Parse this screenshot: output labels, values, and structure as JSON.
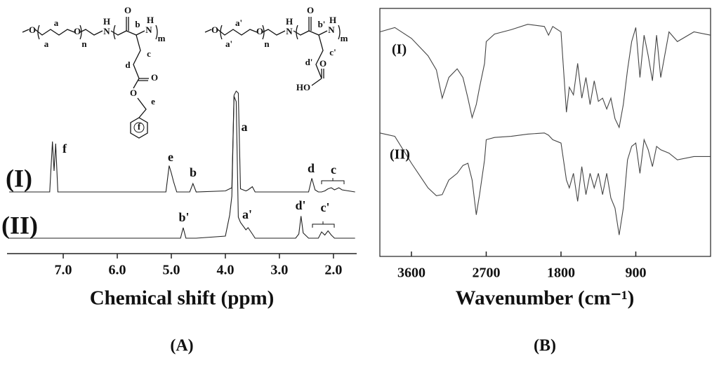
{
  "chart_data": [
    {
      "type": "line",
      "title": "(A)",
      "xlabel": "Chemical shift (ppm)",
      "x": [
        8.0,
        7.25,
        7.2,
        7.17,
        7.14,
        7.1,
        5.1,
        5.04,
        5.0,
        4.96,
        4.9,
        4.83,
        4.78,
        4.73,
        4.66,
        4.6,
        4.54,
        4.0,
        3.92,
        3.88,
        3.84,
        3.8,
        3.76,
        3.72,
        3.62,
        3.58,
        3.5,
        3.45,
        2.7,
        2.64,
        2.6,
        2.56,
        2.46,
        2.4,
        2.34,
        2.28,
        2.22,
        2.16,
        2.1,
        2.04,
        1.98,
        1.9,
        1.84,
        1.6
      ],
      "series": [
        {
          "name": "(I)",
          "color": "#222222",
          "values": [
            0,
            0,
            48,
            20,
            46,
            0,
            0,
            25,
            18,
            10,
            0,
            0,
            0,
            0,
            0,
            8,
            0,
            1,
            3,
            4,
            92,
            96,
            94,
            3,
            1,
            2,
            5,
            0,
            0,
            0,
            0,
            0,
            0,
            13,
            2,
            0,
            0,
            1,
            3,
            4,
            2,
            4,
            2,
            0
          ]
        },
        {
          "name": "(II)",
          "color": "#222222",
          "values": [
            0,
            0,
            0,
            0,
            0,
            0,
            0,
            0,
            0,
            0,
            0,
            0,
            10,
            0,
            0,
            0,
            0,
            2,
            22,
            40,
            135,
            130,
            20,
            15,
            8,
            10,
            4,
            0,
            0,
            4,
            21,
            5,
            0,
            0,
            0,
            0,
            6,
            3,
            7,
            3,
            0,
            0,
            0,
            0
          ]
        }
      ],
      "xlim": [
        8.04,
        1.57
      ],
      "ylim": [
        0,
        140
      ],
      "xticks": [
        {
          "value": 7,
          "label": "7.0"
        },
        {
          "value": 6,
          "label": "6.0"
        },
        {
          "value": 5,
          "label": "5.0"
        },
        {
          "value": 4,
          "label": "4.0"
        },
        {
          "value": 3,
          "label": "3.0"
        },
        {
          "value": 2,
          "label": "2.0"
        }
      ],
      "annotations": [
        "f",
        "e",
        "b",
        "a",
        "d",
        "c",
        "b'",
        "a'",
        "d'",
        "c'"
      ]
    },
    {
      "type": "line",
      "title": "(B)",
      "xlabel": "Wavenumber (cm⁻¹)",
      "x": [
        3980,
        3800,
        3600,
        3400,
        3300,
        3230,
        3150,
        3050,
        2980,
        2920,
        2870,
        2820,
        2780,
        2720,
        2700,
        2600,
        2400,
        2200,
        2000,
        1950,
        1900,
        1800,
        1735,
        1700,
        1650,
        1600,
        1550,
        1500,
        1450,
        1400,
        1350,
        1300,
        1250,
        1200,
        1150,
        1100,
        1050,
        1000,
        950,
        900,
        850,
        800,
        750,
        700,
        650,
        600,
        500,
        400,
        200,
        0
      ],
      "series": [
        {
          "name": "(I)",
          "color": "#444444",
          "values": [
            90,
            94,
            84,
            68,
            55,
            29,
            48,
            56,
            48,
            29,
            11,
            23,
            39,
            61,
            81,
            88,
            92,
            97,
            95,
            87,
            95,
            90,
            16,
            39,
            32,
            61,
            29,
            48,
            23,
            45,
            26,
            29,
            19,
            29,
            10,
            2,
            23,
            55,
            81,
            94,
            48,
            87,
            68,
            45,
            87,
            48,
            90,
            81,
            90,
            87
          ]
        },
        {
          "name": "(II)",
          "color": "#444444",
          "values": [
            97,
            94,
            70,
            48,
            41,
            42,
            55,
            61,
            68,
            70,
            55,
            24,
            42,
            73,
            91,
            93,
            94,
            96,
            97,
            95,
            91,
            88,
            55,
            48,
            61,
            36,
            67,
            42,
            61,
            48,
            61,
            42,
            61,
            39,
            30,
            6,
            30,
            73,
            85,
            88,
            61,
            91,
            82,
            67,
            85,
            82,
            79,
            73,
            76,
            76
          ]
        }
      ],
      "xlim": [
        3980,
        0
      ],
      "ylim": [
        0,
        100
      ],
      "xticks": [
        3600,
        2700,
        1800,
        900
      ]
    }
  ],
  "structures": [
    {
      "labels": [
        "O",
        "a",
        "a",
        "O",
        "n",
        "N",
        "H",
        "O",
        "b",
        "H",
        "N",
        "m",
        "c",
        "d",
        "O",
        "O",
        "e",
        "f"
      ]
    },
    {
      "labels": [
        "O",
        "a'",
        "a'",
        "O",
        "n",
        "N",
        "H",
        "O",
        "b'",
        "H",
        "N",
        "m",
        "c'",
        "d'",
        "O",
        "HO"
      ]
    }
  ]
}
